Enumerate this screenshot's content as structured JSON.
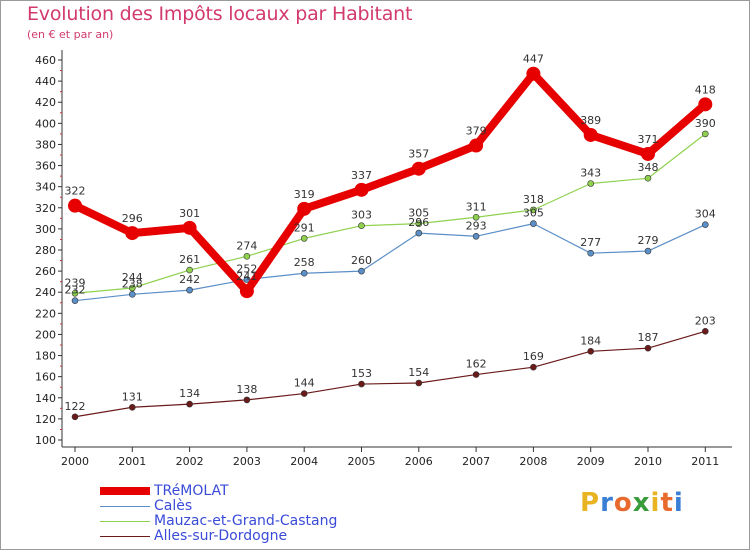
{
  "chart_data": {
    "type": "line",
    "title": "Evolution des Impôts locaux par Habitant",
    "subtitle": "(en € et par an)",
    "xlabel": "",
    "ylabel": "",
    "categories": [
      "2000",
      "2001",
      "2002",
      "2003",
      "2004",
      "2005",
      "2006",
      "2007",
      "2008",
      "2009",
      "2010",
      "2011"
    ],
    "ylim": [
      100,
      460
    ],
    "yticks": [
      100,
      120,
      140,
      160,
      180,
      200,
      220,
      240,
      260,
      280,
      300,
      320,
      340,
      360,
      380,
      400,
      420,
      440,
      460
    ],
    "grid": false,
    "series": [
      {
        "name": "TRéMOLAT",
        "color": "#e60000",
        "values": [
          322,
          296,
          301,
          241,
          319,
          337,
          357,
          379,
          447,
          389,
          371,
          418
        ]
      },
      {
        "name": "Calès",
        "color": "#5b8fc7",
        "values": [
          232,
          238,
          242,
          252,
          258,
          260,
          296,
          293,
          305,
          277,
          279,
          304
        ]
      },
      {
        "name": "Mauzac-et-Grand-Castang",
        "color": "#8fd14f",
        "values": [
          239,
          244,
          261,
          274,
          291,
          303,
          305,
          311,
          318,
          343,
          348,
          390
        ]
      },
      {
        "name": "Alles-sur-Dordogne",
        "color": "#6b1a1a",
        "values": [
          122,
          131,
          134,
          138,
          144,
          153,
          154,
          162,
          169,
          184,
          187,
          203
        ]
      }
    ]
  },
  "logo": {
    "letters": [
      "P",
      "r",
      "o",
      "x",
      "i",
      "t",
      "i"
    ],
    "colors": [
      "#e8b422",
      "#3a7fd6",
      "#e86a2c",
      "#3a9b3a",
      "#e8b422",
      "#e86a2c",
      "#3a7fd6"
    ]
  }
}
